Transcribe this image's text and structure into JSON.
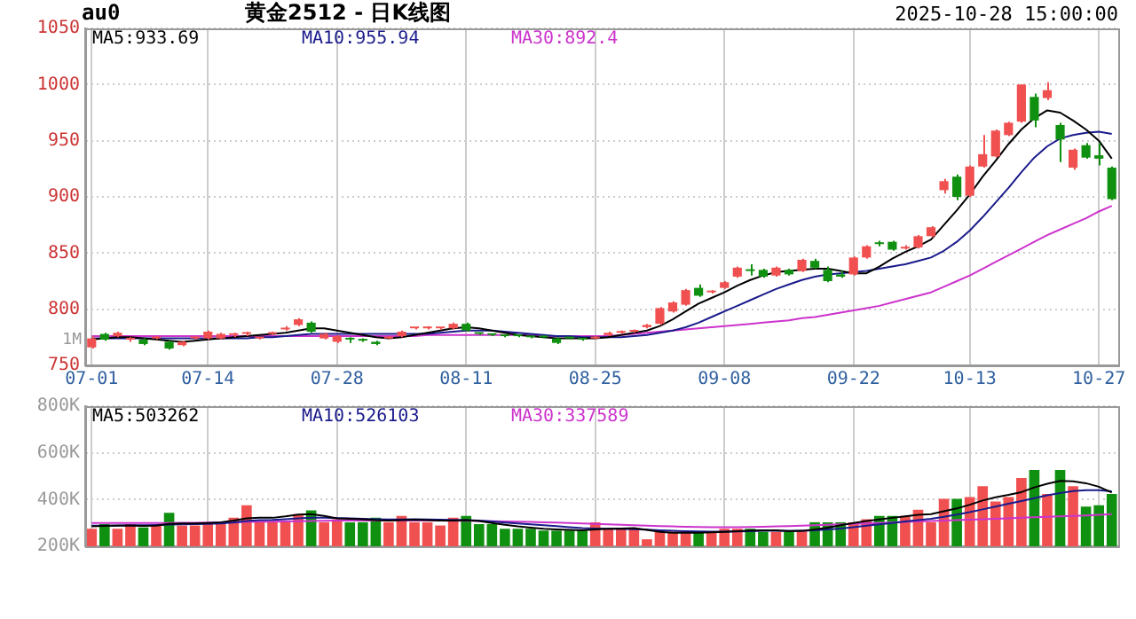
{
  "chart_data": [
    {
      "type": "candlestick",
      "title": "黄金2512 - 日K线图",
      "annotations": [
        "au0",
        "2025-10-28 15:00:00",
        "1M"
      ],
      "categories": [
        "07-01",
        null,
        null,
        null,
        null,
        null,
        null,
        null,
        null,
        "07-14",
        null,
        null,
        null,
        null,
        null,
        null,
        null,
        null,
        null,
        "07-28",
        null,
        null,
        null,
        null,
        null,
        null,
        null,
        null,
        null,
        "08-11",
        null,
        null,
        null,
        null,
        null,
        null,
        null,
        null,
        null,
        "08-25",
        null,
        null,
        null,
        null,
        null,
        null,
        null,
        null,
        null,
        "09-08",
        null,
        null,
        null,
        null,
        null,
        null,
        null,
        null,
        null,
        "09-22",
        null,
        null,
        null,
        null,
        null,
        null,
        null,
        null,
        "10-13",
        null,
        null,
        null,
        null,
        null,
        null,
        null,
        null,
        null,
        "10-27",
        null
      ],
      "ohlc": [
        [
          766,
          776,
          765,
          774
        ],
        [
          778,
          779,
          772,
          773
        ],
        [
          776,
          780,
          775,
          779
        ],
        [
          773,
          775,
          771,
          774
        ],
        [
          773,
          774,
          768,
          769
        ],
        [
          774,
          776,
          773,
          775
        ],
        [
          771,
          772,
          764,
          765
        ],
        [
          768,
          772,
          767,
          771
        ],
        [
          774,
          776,
          773,
          775
        ],
        [
          774,
          781,
          773,
          780
        ],
        [
          774,
          779,
          773,
          778
        ],
        [
          777,
          779,
          775,
          777
        ],
        [
          778,
          780,
          776,
          778
        ],
        [
          774,
          775,
          773,
          774
        ],
        [
          778,
          780,
          777,
          779
        ],
        [
          782,
          785,
          781,
          783
        ],
        [
          786,
          792,
          785,
          791
        ],
        [
          788,
          789,
          779,
          780
        ],
        [
          774,
          779,
          773,
          778
        ],
        [
          771,
          777,
          770,
          776
        ],
        [
          773,
          775,
          770,
          773
        ],
        [
          772,
          774,
          771,
          772
        ],
        [
          771,
          772,
          768,
          769
        ],
        [
          774,
          776,
          773,
          775
        ],
        [
          776,
          781,
          775,
          780
        ],
        [
          783,
          784,
          782,
          783
        ],
        [
          783,
          785,
          782,
          783
        ],
        [
          783,
          784,
          782,
          783
        ],
        [
          783,
          788,
          782,
          787
        ],
        [
          787,
          788,
          780,
          781
        ],
        [
          778,
          779,
          777,
          778
        ],
        [
          777,
          778,
          776,
          777
        ],
        [
          776,
          777,
          775,
          776
        ],
        [
          776,
          777,
          775,
          776
        ],
        [
          775,
          776,
          774,
          775
        ],
        [
          775,
          776,
          774,
          775
        ],
        [
          774,
          775,
          769,
          770
        ],
        [
          774,
          775,
          773,
          774
        ],
        [
          773,
          774,
          772,
          773
        ],
        [
          774,
          776,
          773,
          775
        ],
        [
          777,
          780,
          776,
          779
        ],
        [
          779,
          781,
          778,
          780
        ],
        [
          780,
          782,
          779,
          781
        ],
        [
          784,
          787,
          783,
          786
        ],
        [
          787,
          802,
          786,
          801
        ],
        [
          798,
          807,
          797,
          806
        ],
        [
          804,
          818,
          803,
          817
        ],
        [
          819,
          822,
          811,
          812
        ],
        [
          815,
          817,
          814,
          816
        ],
        [
          819,
          825,
          818,
          824
        ],
        [
          829,
          838,
          828,
          837
        ],
        [
          835,
          840,
          830,
          834
        ],
        [
          835,
          836,
          828,
          829
        ],
        [
          830,
          838,
          829,
          837
        ],
        [
          835,
          836,
          830,
          831
        ],
        [
          834,
          845,
          833,
          844
        ],
        [
          843,
          845,
          836,
          837
        ],
        [
          835,
          838,
          824,
          825
        ],
        [
          831,
          834,
          828,
          829
        ],
        [
          831,
          847,
          830,
          846
        ],
        [
          846,
          857,
          845,
          856
        ],
        [
          859,
          861,
          856,
          858
        ],
        [
          860,
          861,
          852,
          853
        ],
        [
          854,
          857,
          853,
          855
        ],
        [
          855,
          866,
          854,
          865
        ],
        [
          865,
          874,
          864,
          873
        ],
        [
          906,
          916,
          903,
          914
        ],
        [
          918,
          920,
          897,
          900
        ],
        [
          901,
          928,
          900,
          927
        ],
        [
          927,
          955,
          926,
          938
        ],
        [
          936,
          960,
          935,
          959
        ],
        [
          955,
          967,
          954,
          966
        ],
        [
          967,
          1000,
          966,
          1000
        ],
        [
          989,
          992,
          962,
          968
        ],
        [
          988,
          1002,
          986,
          995
        ],
        [
          964,
          966,
          931,
          951
        ],
        [
          926,
          943,
          924,
          942
        ],
        [
          946,
          948,
          934,
          935
        ],
        [
          937,
          948,
          928,
          934
        ],
        [
          926,
          927,
          897,
          898
        ]
      ],
      "colors": [
        "#f05050",
        "#109010",
        "#f05050",
        "#f05050",
        "#109010",
        "#f05050",
        "#109010",
        "#f05050",
        "#f05050",
        "#f05050",
        "#f05050",
        "#f05050",
        "#f05050",
        "#f05050",
        "#f05050",
        "#f05050",
        "#f05050",
        "#109010",
        "#f05050",
        "#f05050",
        "#109010",
        "#109010",
        "#109010",
        "#f05050",
        "#f05050",
        "#f05050",
        "#f05050",
        "#f05050",
        "#f05050",
        "#109010",
        "#109010",
        "#109010",
        "#109010",
        "#109010",
        "#109010",
        "#109010",
        "#109010",
        "#109010",
        "#109010",
        "#f05050",
        "#f05050",
        "#f05050",
        "#f05050",
        "#f05050",
        "#f05050",
        "#f05050",
        "#f05050",
        "#109010",
        "#f05050",
        "#f05050",
        "#f05050",
        "#109010",
        "#109010",
        "#f05050",
        "#109010",
        "#f05050",
        "#109010",
        "#109010",
        "#109010",
        "#f05050",
        "#f05050",
        "#109010",
        "#109010",
        "#f05050",
        "#f05050",
        "#f05050",
        "#f05050",
        "#109010",
        "#f05050",
        "#f05050",
        "#f05050",
        "#f05050",
        "#f05050",
        "#109010",
        "#f05050",
        "#109010",
        "#f05050",
        "#109010",
        "#109010",
        "#109010"
      ],
      "series": [
        {
          "name": "MA5:933.69",
          "type": "line",
          "color": "#000000",
          "values": [
            773,
            774,
            775,
            775,
            774,
            773,
            772,
            771,
            772,
            773,
            774,
            775,
            776,
            777,
            778,
            779,
            781,
            783,
            783,
            781,
            779,
            777,
            775,
            774,
            775,
            777,
            779,
            781,
            783,
            784,
            783,
            781,
            779,
            777,
            776,
            775,
            774,
            774,
            774,
            774,
            775,
            777,
            779,
            781,
            785,
            791,
            798,
            805,
            810,
            815,
            821,
            826,
            830,
            833,
            834,
            835,
            836,
            836,
            834,
            832,
            832,
            838,
            845,
            851,
            856,
            862,
            875,
            888,
            902,
            918,
            932,
            947,
            960,
            970,
            977,
            975,
            968,
            960,
            950,
            934
          ]
        },
        {
          "name": "MA10:955.94",
          "type": "line",
          "color": "#1a1a8c",
          "values": [
            774,
            774,
            774,
            774,
            774,
            774,
            774,
            774,
            774,
            774,
            774,
            774,
            774,
            775,
            775,
            776,
            777,
            778,
            778,
            778,
            778,
            778,
            778,
            778,
            778,
            778,
            778,
            779,
            780,
            781,
            781,
            781,
            780,
            779,
            778,
            777,
            776,
            776,
            775,
            775,
            775,
            775,
            776,
            777,
            779,
            781,
            784,
            788,
            793,
            798,
            803,
            808,
            813,
            818,
            822,
            826,
            829,
            831,
            832,
            833,
            834,
            836,
            838,
            840,
            843,
            846,
            852,
            860,
            870,
            882,
            895,
            908,
            922,
            935,
            945,
            952,
            955,
            957,
            958,
            956
          ]
        },
        {
          "name": "MA30:892.4",
          "type": "line",
          "color": "#cc33cc",
          "values": [
            776,
            776,
            776,
            776,
            776,
            776,
            776,
            776,
            776,
            776,
            776,
            776,
            776,
            776,
            776,
            776,
            776,
            776,
            776,
            776,
            776,
            776,
            776,
            776,
            776,
            776,
            777,
            777,
            777,
            777,
            777,
            777,
            777,
            777,
            777,
            776,
            776,
            776,
            776,
            776,
            776,
            777,
            778,
            779,
            780,
            781,
            782,
            783,
            784,
            785,
            786,
            787,
            788,
            789,
            790,
            792,
            793,
            795,
            797,
            799,
            801,
            803,
            806,
            809,
            812,
            815,
            820,
            825,
            830,
            836,
            842,
            848,
            854,
            860,
            866,
            871,
            876,
            881,
            887,
            892
          ]
        }
      ],
      "ylim": [
        750,
        1050
      ],
      "yticks": [
        750,
        800,
        850,
        900,
        950,
        1000,
        1050
      ],
      "grid": true,
      "legend": "top left",
      "marker": "none"
    },
    {
      "type": "bar",
      "categories": [
        null,
        null,
        null,
        null,
        null,
        null,
        null,
        null,
        null,
        null,
        null,
        null,
        null,
        null,
        null,
        null,
        null,
        null,
        null,
        null,
        null,
        null,
        null,
        null,
        null,
        null,
        null,
        null,
        null,
        null,
        null,
        null,
        null,
        null,
        null,
        null,
        null,
        null,
        null,
        null,
        null,
        null,
        null,
        null,
        null,
        null,
        null,
        null,
        null,
        null,
        null,
        null,
        null,
        null,
        null,
        null,
        null,
        null,
        null,
        null,
        null,
        null,
        null,
        null,
        null,
        null,
        null,
        null,
        null,
        null,
        null,
        null,
        null,
        null,
        null,
        null,
        null,
        null,
        null,
        null
      ],
      "values": [
        275000,
        295000,
        275000,
        295000,
        281000,
        289000,
        343000,
        289000,
        289000,
        303000,
        295000,
        322000,
        376000,
        303000,
        303000,
        303000,
        338000,
        354000,
        303000,
        316000,
        303000,
        303000,
        322000,
        303000,
        330000,
        303000,
        303000,
        289000,
        322000,
        330000,
        295000,
        295000,
        275000,
        275000,
        275000,
        267000,
        267000,
        267000,
        267000,
        303000,
        275000,
        275000,
        275000,
        230000,
        262000,
        262000,
        262000,
        257000,
        262000,
        275000,
        275000,
        275000,
        262000,
        262000,
        262000,
        267000,
        303000,
        303000,
        303000,
        303000,
        316000,
        330000,
        330000,
        330000,
        357000,
        303000,
        403000,
        403000,
        411000,
        457000,
        392000,
        411000,
        492000,
        527000,
        424000,
        527000,
        457000,
        370000,
        376000,
        424000
      ],
      "colors": [
        "#f05050",
        "#109010",
        "#f05050",
        "#f05050",
        "#109010",
        "#f05050",
        "#109010",
        "#f05050",
        "#f05050",
        "#f05050",
        "#f05050",
        "#f05050",
        "#f05050",
        "#f05050",
        "#f05050",
        "#f05050",
        "#f05050",
        "#109010",
        "#f05050",
        "#f05050",
        "#109010",
        "#109010",
        "#109010",
        "#f05050",
        "#f05050",
        "#f05050",
        "#f05050",
        "#f05050",
        "#f05050",
        "#109010",
        "#109010",
        "#109010",
        "#109010",
        "#109010",
        "#109010",
        "#109010",
        "#109010",
        "#109010",
        "#109010",
        "#f05050",
        "#f05050",
        "#f05050",
        "#f05050",
        "#f05050",
        "#f05050",
        "#f05050",
        "#f05050",
        "#109010",
        "#f05050",
        "#f05050",
        "#f05050",
        "#109010",
        "#109010",
        "#f05050",
        "#109010",
        "#f05050",
        "#109010",
        "#109010",
        "#109010",
        "#f05050",
        "#f05050",
        "#109010",
        "#109010",
        "#f05050",
        "#f05050",
        "#f05050",
        "#f05050",
        "#109010",
        "#f05050",
        "#f05050",
        "#f05050",
        "#f05050",
        "#f05050",
        "#109010",
        "#f05050",
        "#109010",
        "#f05050",
        "#109010",
        "#109010",
        "#109010"
      ],
      "series": [
        {
          "name": "MA5:503262",
          "type": "line",
          "color": "#000000",
          "values": [
            285000,
            287000,
            288000,
            288000,
            287000,
            288000,
            296000,
            298000,
            298000,
            300000,
            303000,
            310000,
            320000,
            322000,
            322000,
            328000,
            336000,
            338000,
            330000,
            320000,
            318000,
            316000,
            312000,
            310000,
            312000,
            314000,
            312000,
            310000,
            310000,
            312000,
            308000,
            300000,
            292000,
            285000,
            280000,
            275000,
            272000,
            270000,
            268000,
            272000,
            275000,
            276000,
            278000,
            270000,
            262000,
            258000,
            258000,
            258000,
            260000,
            262000,
            265000,
            267000,
            268000,
            268000,
            265000,
            266000,
            272000,
            280000,
            290000,
            300000,
            308000,
            315000,
            322000,
            328000,
            335000,
            338000,
            350000,
            362000,
            378000,
            396000,
            410000,
            420000,
            432000,
            452000,
            468000,
            480000,
            478000,
            470000,
            455000,
            430000
          ]
        },
        {
          "name": "MA10:526103",
          "type": "line",
          "color": "#1a1a8c",
          "values": [
            288000,
            288000,
            289000,
            290000,
            290000,
            291000,
            293000,
            294000,
            295000,
            296000,
            298000,
            302000,
            308000,
            312000,
            313000,
            316000,
            320000,
            322000,
            322000,
            321000,
            320000,
            318000,
            316000,
            315000,
            315000,
            316000,
            315000,
            314000,
            313000,
            312000,
            310000,
            306000,
            302000,
            298000,
            294000,
            290000,
            286000,
            282000,
            278000,
            276000,
            275000,
            274000,
            273000,
            271000,
            268000,
            266000,
            265000,
            264000,
            263000,
            263000,
            264000,
            265000,
            266000,
            266000,
            266000,
            266000,
            268000,
            272000,
            276000,
            282000,
            288000,
            294000,
            300000,
            306000,
            312000,
            318000,
            326000,
            336000,
            346000,
            358000,
            370000,
            382000,
            394000,
            406000,
            418000,
            428000,
            436000,
            440000,
            440000,
            435000
          ]
        },
        {
          "name": "MA30:337589",
          "type": "line",
          "color": "#cc33cc",
          "values": [
            300000,
            300000,
            300000,
            300000,
            300000,
            300000,
            300000,
            301000,
            301000,
            302000,
            302000,
            303000,
            304000,
            305000,
            305000,
            306000,
            307000,
            308000,
            309000,
            310000,
            310000,
            310000,
            310000,
            310000,
            310000,
            310000,
            310000,
            310000,
            309000,
            309000,
            308000,
            307000,
            306000,
            305000,
            304000,
            303000,
            302000,
            300000,
            298000,
            296000,
            294000,
            292000,
            290000,
            288000,
            286000,
            285000,
            284000,
            283000,
            282000,
            282000,
            282000,
            283000,
            284000,
            285000,
            286000,
            288000,
            290000,
            292000,
            294000,
            296000,
            298000,
            300000,
            302000,
            304000,
            306000,
            308000,
            310000,
            312000,
            314000,
            316000,
            318000,
            320000,
            322000,
            324000,
            326000,
            328000,
            330000,
            332000,
            335000,
            338000
          ]
        }
      ],
      "ylim": [
        200000,
        800000
      ],
      "yticks": [
        {
          "value": 200000,
          "label": "200K"
        },
        {
          "value": 400000,
          "label": "400K"
        },
        {
          "value": 600000,
          "label": "600K"
        },
        {
          "value": 800000,
          "label": "800K"
        }
      ],
      "grid": true,
      "legend": "top left",
      "marker": "none",
      "tick_labels": "y"
    }
  ]
}
